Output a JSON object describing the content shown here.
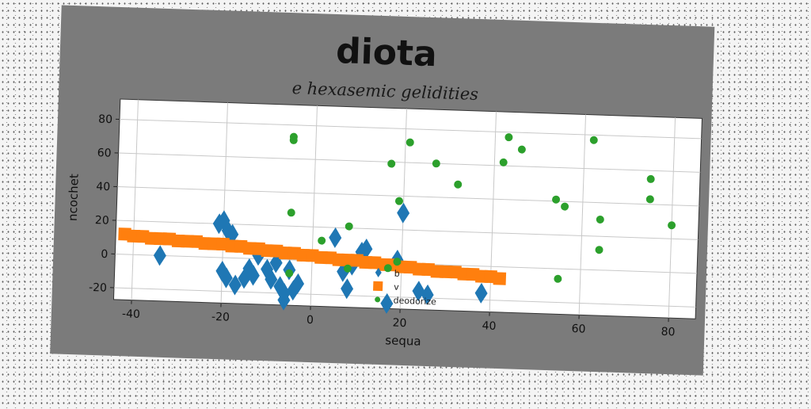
{
  "chart_data": {
    "type": "scatter",
    "suptitle": "diota",
    "title": "e hexasemic gelidities",
    "xlabel": "sequa",
    "ylabel": "ncochet",
    "xlim": [
      -44,
      86
    ],
    "ylim": [
      -27,
      92
    ],
    "xticks": [
      -40,
      -20,
      0,
      20,
      40,
      60,
      80
    ],
    "yticks": [
      -20,
      0,
      20,
      40,
      60,
      80
    ],
    "grid": true,
    "legend_position": "lower-center",
    "series": [
      {
        "name": "b",
        "marker": "diamond",
        "color": "#1f77b4",
        "points": [
          [
            -34,
            0
          ],
          [
            -21,
            20
          ],
          [
            -20,
            22
          ],
          [
            -19,
            16
          ],
          [
            -18,
            14
          ],
          [
            -20,
            -8
          ],
          [
            -19,
            -12
          ],
          [
            -17,
            -16
          ],
          [
            -15,
            -12
          ],
          [
            -14,
            -6
          ],
          [
            -13,
            -10
          ],
          [
            -12,
            2
          ],
          [
            -10,
            -6
          ],
          [
            -9,
            -12
          ],
          [
            -8,
            -2
          ],
          [
            -7,
            -16
          ],
          [
            -6,
            -20
          ],
          [
            -6,
            -24
          ],
          [
            -5,
            -6
          ],
          [
            -4,
            -18
          ],
          [
            -3,
            -14
          ],
          [
            5,
            14
          ],
          [
            7,
            -6
          ],
          [
            8,
            -16
          ],
          [
            9,
            -2
          ],
          [
            11,
            6
          ],
          [
            12,
            8
          ],
          [
            17,
            -24
          ],
          [
            19,
            2
          ],
          [
            20,
            30
          ],
          [
            24,
            -16
          ],
          [
            26,
            -18
          ],
          [
            38,
            -16
          ]
        ]
      },
      {
        "name": "v",
        "marker": "square",
        "color": "#ff7f0e",
        "points": [
          [
            -42,
            12
          ],
          [
            -40,
            11
          ],
          [
            -38,
            11
          ],
          [
            -36,
            10
          ],
          [
            -34,
            10
          ],
          [
            -32,
            10
          ],
          [
            -30,
            9
          ],
          [
            -28,
            9
          ],
          [
            -26,
            9
          ],
          [
            -24,
            8
          ],
          [
            -22,
            8
          ],
          [
            -20,
            8
          ],
          [
            -18,
            7
          ],
          [
            -16,
            7
          ],
          [
            -14,
            6
          ],
          [
            -12,
            6
          ],
          [
            -10,
            5
          ],
          [
            -8,
            5
          ],
          [
            -6,
            4
          ],
          [
            -4,
            4
          ],
          [
            -2,
            3
          ],
          [
            0,
            3
          ],
          [
            2,
            2
          ],
          [
            4,
            2
          ],
          [
            6,
            1
          ],
          [
            8,
            1
          ],
          [
            10,
            1
          ],
          [
            12,
            0
          ],
          [
            14,
            0
          ],
          [
            16,
            -1
          ],
          [
            18,
            -1
          ],
          [
            20,
            -2
          ],
          [
            22,
            -2
          ],
          [
            24,
            -3
          ],
          [
            26,
            -3
          ],
          [
            28,
            -4
          ],
          [
            30,
            -4
          ],
          [
            32,
            -4
          ],
          [
            34,
            -5
          ],
          [
            36,
            -5
          ],
          [
            38,
            -6
          ],
          [
            40,
            -6
          ],
          [
            42,
            -7
          ]
        ]
      },
      {
        "name": "deodorize",
        "marker": "circle",
        "color": "#2ca02c",
        "points": [
          [
            -5,
            73
          ],
          [
            -5,
            71
          ],
          [
            -5,
            28
          ],
          [
            -5,
            -8
          ],
          [
            2,
            12
          ],
          [
            8,
            21
          ],
          [
            8,
            -4
          ],
          [
            17,
            -3
          ],
          [
            17,
            59
          ],
          [
            19,
            37
          ],
          [
            19,
            1
          ],
          [
            21,
            72
          ],
          [
            27,
            60
          ],
          [
            32,
            48
          ],
          [
            42,
            62
          ],
          [
            43,
            77
          ],
          [
            46,
            70
          ],
          [
            54,
            41
          ],
          [
            56,
            37
          ],
          [
            55,
            -6
          ],
          [
            62,
            77
          ],
          [
            64,
            30
          ],
          [
            64,
            12
          ],
          [
            75,
            55
          ],
          [
            75,
            43
          ],
          [
            80,
            28
          ]
        ]
      }
    ]
  }
}
